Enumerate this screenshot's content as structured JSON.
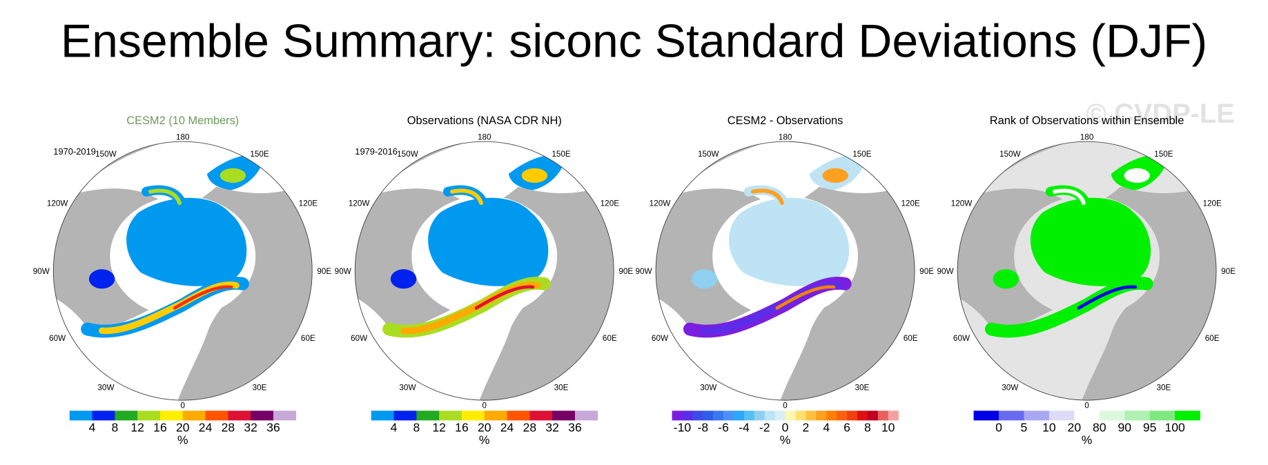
{
  "title": "Ensemble Summary: siconc Standard Deviations (DJF)",
  "watermark": "© CVDP-LE",
  "longitude_labels": [
    "180",
    "150W",
    "150E",
    "120W",
    "120E",
    "90W",
    "90E",
    "60W",
    "60E",
    "30W",
    "30E",
    "0"
  ],
  "panels": [
    {
      "title": "CESM2 (10 Members)",
      "period": "1970-2019",
      "colorbar": {
        "colors": [
          "#0099f0",
          "#0022ee",
          "#22aa22",
          "#aadd22",
          "#ffee00",
          "#ffaa00",
          "#ff5500",
          "#dd1133",
          "#770066",
          "#c8a8d8"
        ],
        "ticks": [
          4,
          8,
          12,
          16,
          20,
          24,
          28,
          32,
          36
        ],
        "unit": "%"
      }
    },
    {
      "title": "Observations (NASA CDR NH)",
      "period": "1979-2016",
      "colorbar": {
        "colors": [
          "#0099f0",
          "#0022ee",
          "#22aa22",
          "#aadd22",
          "#ffee00",
          "#ffaa00",
          "#ff5500",
          "#dd1133",
          "#770066",
          "#c8a8d8"
        ],
        "ticks": [
          4,
          8,
          12,
          16,
          20,
          24,
          28,
          32,
          36
        ],
        "unit": "%"
      }
    },
    {
      "title": "CESM2 - Observations",
      "colorbar": {
        "colors": [
          "#7a1fe0",
          "#5a2ee8",
          "#3b4ce8",
          "#2f5fe8",
          "#3a78f0",
          "#4d90f5",
          "#2aa8ff",
          "#55bff5",
          "#8fd0f0",
          "#bde3f5",
          "#d8eef8",
          "#fff7b0",
          "#ffe070",
          "#ffc040",
          "#ffa020",
          "#ff8000",
          "#ff6010",
          "#f04010",
          "#e01010",
          "#c00020",
          "#e86060",
          "#f5a0a0"
        ],
        "levels": [
          -10,
          -9,
          -8,
          -7,
          -6,
          -5,
          -4,
          -3,
          -2,
          -1,
          0,
          1,
          2,
          3,
          4,
          5,
          6,
          7,
          8,
          9,
          10
        ],
        "ticks": [
          -10,
          -8,
          -6,
          -4,
          -2,
          0,
          2,
          4,
          6,
          8,
          10
        ],
        "unit": "%"
      }
    },
    {
      "title": "Rank of Observations within Ensemble",
      "colorbar": {
        "colors": [
          "#0000e6",
          "#6a6af0",
          "#a8a8f2",
          "#dcdcf8",
          "#ffffff",
          "#dcf8dc",
          "#b0f0b0",
          "#80e880",
          "#00f000"
        ],
        "ticks": [
          0,
          5,
          10,
          20,
          80,
          90,
          95,
          100
        ],
        "unit": "%"
      }
    }
  ]
}
